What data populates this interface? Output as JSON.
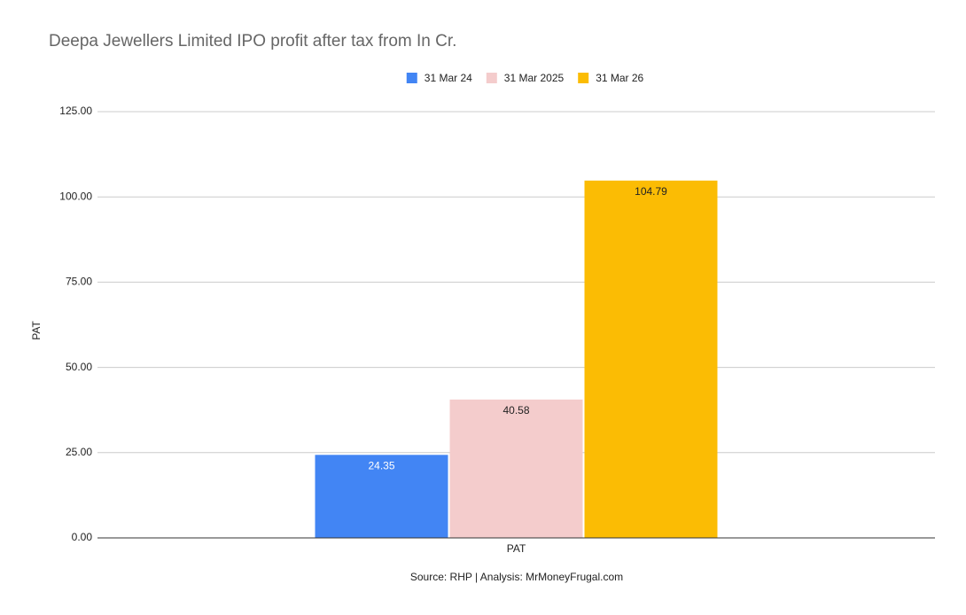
{
  "chart_data": {
    "type": "bar",
    "title": "Deepa Jewellers Limited IPO profit after tax from In Cr.",
    "categories": [
      "PAT"
    ],
    "series": [
      {
        "name": "31 Mar 24",
        "color": "#4285f4",
        "label_color": "#ffffff",
        "values": [
          24.35
        ]
      },
      {
        "name": "31 Mar 2025",
        "color": "#f4cccc",
        "label_color": "#222222",
        "values": [
          40.58
        ]
      },
      {
        "name": "31 Mar 26",
        "color": "#fbbc04",
        "label_color": "#222222",
        "values": [
          104.79
        ]
      }
    ],
    "y_label": "PAT",
    "x_label": "PAT",
    "source": "Source: RHP | Analysis: MrMoneyFrugal.com",
    "ylim": [
      0,
      125
    ],
    "yticks": [
      {
        "value": 0,
        "label": "0.00"
      },
      {
        "value": 25,
        "label": "25.00"
      },
      {
        "value": 50,
        "label": "50.00"
      },
      {
        "value": 75,
        "label": "75.00"
      },
      {
        "value": 100,
        "label": "100.00"
      },
      {
        "value": 125,
        "label": "125.00"
      }
    ],
    "grid": true,
    "legend": "top"
  }
}
